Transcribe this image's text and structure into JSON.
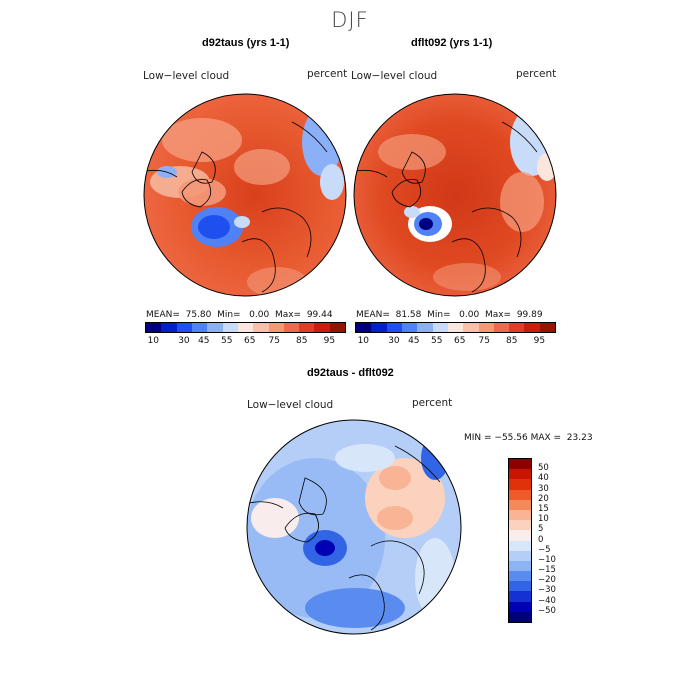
{
  "season": "DJF",
  "panels": [
    {
      "title": "d92taus (yrs 1-1)",
      "field_label": "Low−level cloud",
      "units_label": "percent",
      "stats": "MEAN=  75.80  Min=   0.00  Max=  99.44"
    },
    {
      "title": "dflt092 (yrs 1-1)",
      "field_label": "Low−level cloud",
      "units_label": "percent",
      "stats": "MEAN=  81.58  Min=   0.00  Max=  99.89"
    }
  ],
  "diff_panel": {
    "title": "d92taus - dflt092",
    "field_label": "Low−level cloud",
    "units_label": "percent",
    "stats": "MIN = −55.56 MAX =  23.23"
  },
  "horizontal_colorbar": {
    "colors": [
      "#00007f",
      "#0020c8",
      "#1e50f0",
      "#5082f5",
      "#8cb0f8",
      "#c8dcfa",
      "#fae6dc",
      "#f8c0a8",
      "#f49878",
      "#ee6a48",
      "#e04020",
      "#c81e0a",
      "#961400"
    ],
    "tick_labels": [
      "10",
      "30",
      "45",
      "55",
      "65",
      "75",
      "85",
      "95"
    ]
  },
  "vertical_colorbar": {
    "colors_top_to_bottom": [
      "#8c0000",
      "#c81400",
      "#e0320a",
      "#f05a28",
      "#f48a5a",
      "#f8b494",
      "#fad2be",
      "#f8ecec",
      "#d8e6fa",
      "#b4cef8",
      "#8cb4f5",
      "#5a8cf0",
      "#3264e6",
      "#1432d2",
      "#0000b4",
      "#00007a"
    ],
    "tick_labels": [
      "50",
      "40",
      "30",
      "20",
      "15",
      "10",
      "5",
      "0",
      "−5",
      "−10",
      "−15",
      "−20",
      "−30",
      "−40",
      "−50"
    ]
  }
}
